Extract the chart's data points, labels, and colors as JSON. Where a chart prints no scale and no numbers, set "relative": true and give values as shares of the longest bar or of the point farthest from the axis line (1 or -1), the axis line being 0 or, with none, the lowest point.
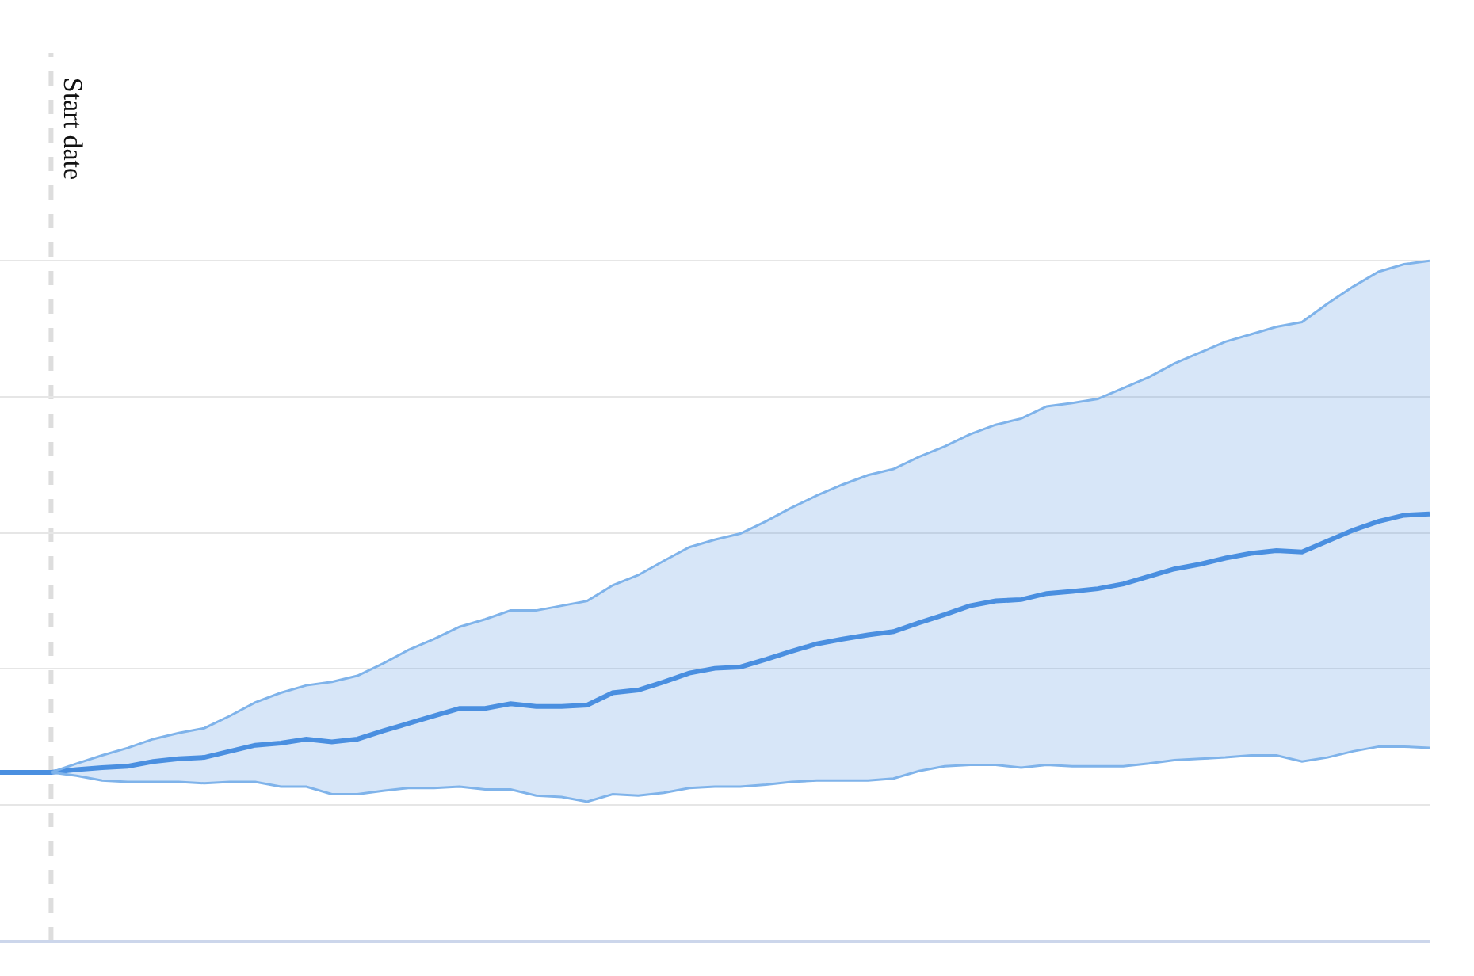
{
  "chart_data": {
    "type": "line",
    "relative": true,
    "grid": "y",
    "categories": [
      null,
      null,
      null,
      null,
      null,
      null,
      null,
      null,
      null,
      null,
      null,
      null,
      null,
      null,
      null,
      null,
      null,
      null,
      null,
      null,
      null,
      null,
      null,
      null,
      null,
      null,
      null,
      null,
      null,
      null,
      null,
      null,
      null,
      null,
      null,
      null,
      null,
      null,
      null,
      null,
      null,
      null,
      null,
      null,
      null,
      null,
      null,
      null,
      null,
      null,
      null,
      null,
      null,
      null,
      null,
      null,
      null
    ],
    "series": [
      {
        "color": "#4a8fe0",
        "values": [
          0.248,
          0.248,
          0.248,
          0.252,
          0.255,
          0.257,
          0.264,
          0.268,
          0.27,
          0.279,
          0.288,
          0.291,
          0.297,
          0.293,
          0.297,
          0.309,
          0.32,
          0.331,
          0.342,
          0.342,
          0.349,
          0.345,
          0.345,
          0.347,
          0.365,
          0.369,
          0.381,
          0.394,
          0.401,
          0.403,
          0.414,
          0.426,
          0.437,
          0.444,
          0.45,
          0.455,
          0.468,
          0.48,
          0.493,
          0.5,
          0.502,
          0.511,
          0.514,
          0.518,
          0.525,
          0.536,
          0.547,
          0.554,
          0.563,
          0.57,
          0.574,
          0.572,
          0.588,
          0.604,
          0.617,
          0.626,
          0.628
        ],
        "upper": [
          null,
          null,
          0.248,
          0.261,
          0.273,
          0.284,
          0.297,
          0.306,
          0.313,
          0.331,
          0.351,
          0.365,
          0.376,
          0.381,
          0.39,
          0.408,
          0.428,
          0.444,
          0.462,
          0.473,
          0.486,
          0.486,
          0.493,
          0.5,
          0.523,
          0.538,
          0.559,
          0.579,
          0.59,
          0.599,
          0.617,
          0.637,
          0.655,
          0.671,
          0.685,
          0.694,
          0.712,
          0.727,
          0.745,
          0.759,
          0.768,
          0.786,
          0.791,
          0.797,
          0.813,
          0.829,
          0.849,
          0.865,
          0.881,
          0.892,
          0.903,
          0.91,
          0.937,
          0.962,
          0.984,
          0.995,
          1
        ],
        "lower": [
          null,
          null,
          0.248,
          0.243,
          0.236,
          0.234,
          0.234,
          0.234,
          0.232,
          0.234,
          0.234,
          0.227,
          0.227,
          0.216,
          0.216,
          0.221,
          0.225,
          0.225,
          0.227,
          0.223,
          0.223,
          0.214,
          0.212,
          0.205,
          0.216,
          0.214,
          0.218,
          0.225,
          0.227,
          0.227,
          0.23,
          0.234,
          0.236,
          0.236,
          0.236,
          0.239,
          0.25,
          0.257,
          0.259,
          0.259,
          0.255,
          0.259,
          0.257,
          0.257,
          0.257,
          0.261,
          0.266,
          0.268,
          0.27,
          0.273,
          0.273,
          0.264,
          0.27,
          0.279,
          0.286,
          0.286,
          0.284
        ]
      },
      {
        "color": "#7fb3ea",
        "values": [
          null,
          null,
          0.248,
          0.261,
          0.273,
          0.284,
          0.297,
          0.306,
          0.313,
          0.331,
          0.351,
          0.365,
          0.376,
          0.381,
          0.39,
          0.408,
          0.428,
          0.444,
          0.462,
          0.473,
          0.486,
          0.486,
          0.493,
          0.5,
          0.523,
          0.538,
          0.559,
          0.579,
          0.59,
          0.599,
          0.617,
          0.637,
          0.655,
          0.671,
          0.685,
          0.694,
          0.712,
          0.727,
          0.745,
          0.759,
          0.768,
          0.786,
          0.791,
          0.797,
          0.813,
          0.829,
          0.849,
          0.865,
          0.881,
          0.892,
          0.903,
          0.91,
          0.937,
          0.962,
          0.984,
          0.995,
          1
        ]
      },
      {
        "color": "#7fb3ea",
        "values": [
          null,
          null,
          0.248,
          0.243,
          0.236,
          0.234,
          0.234,
          0.234,
          0.232,
          0.234,
          0.234,
          0.227,
          0.227,
          0.216,
          0.216,
          0.221,
          0.225,
          0.225,
          0.227,
          0.223,
          0.223,
          0.214,
          0.212,
          0.205,
          0.216,
          0.214,
          0.218,
          0.225,
          0.227,
          0.227,
          0.23,
          0.234,
          0.236,
          0.236,
          0.236,
          0.239,
          0.25,
          0.257,
          0.259,
          0.259,
          0.255,
          0.259,
          0.257,
          0.257,
          0.257,
          0.261,
          0.266,
          0.268,
          0.27,
          0.273,
          0.273,
          0.264,
          0.27,
          0.279,
          0.286,
          0.286,
          0.284
        ]
      }
    ],
    "annotations": [
      "Start date"
    ]
  }
}
